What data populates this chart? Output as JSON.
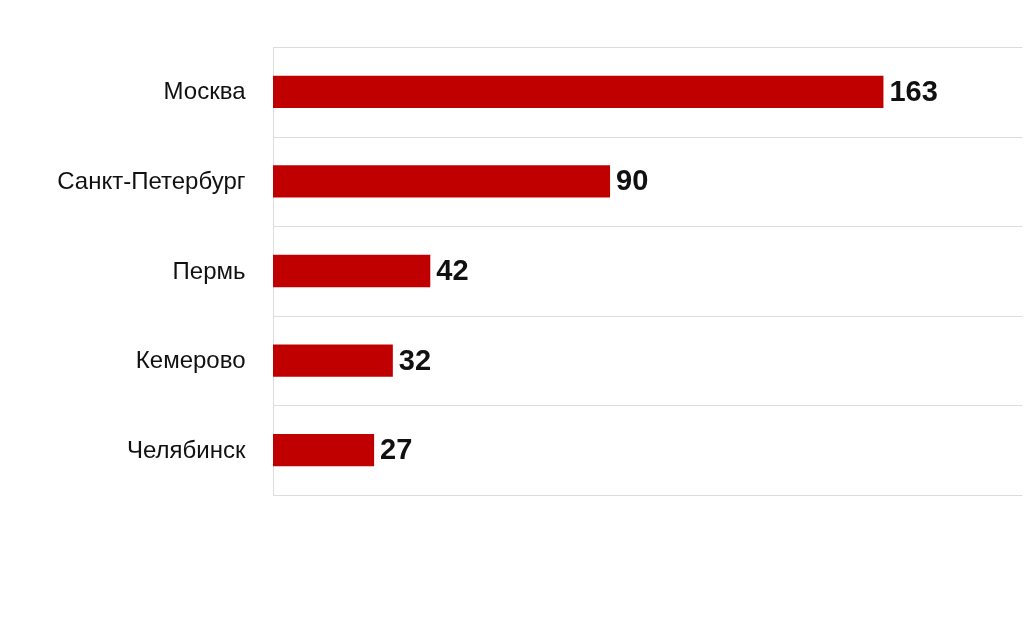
{
  "chart_data": {
    "type": "bar",
    "orientation": "horizontal",
    "categories": [
      "Москва",
      "Санкт-Петербург",
      "Пермь",
      "Кемерово",
      "Челябинск"
    ],
    "values": [
      163,
      90,
      42,
      32,
      27
    ],
    "color": "#c00000",
    "xlim": [
      0,
      200
    ],
    "data_labels": true,
    "grid": "y",
    "tick_labels": "y"
  }
}
